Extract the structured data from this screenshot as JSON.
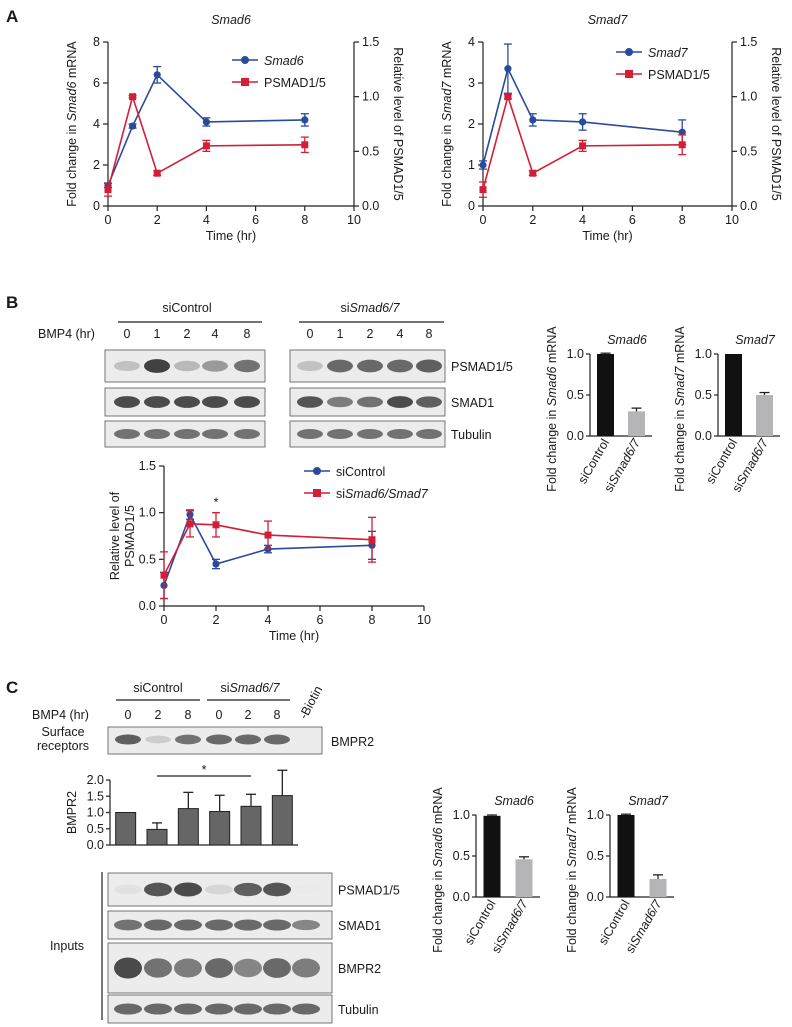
{
  "panels": {
    "a": "A",
    "b": "B",
    "c": "C"
  },
  "colors": {
    "blue": "#2a4a9c",
    "red": "#d21f37",
    "black": "#111111",
    "gray": "#b5b5b8",
    "bar_gray": "#666666"
  },
  "chart_data": [
    {
      "type": "line",
      "title": "Smad6",
      "xlabel": "Time (hr)",
      "ylabel": "Fold change in Smad6 mRNA",
      "y2label": "Relative level of PSMAD1/5",
      "xlim": [
        0,
        10
      ],
      "ylim": [
        0,
        8
      ],
      "y2lim": [
        0,
        1.5
      ],
      "xticks": [
        0,
        2,
        4,
        6,
        8,
        10
      ],
      "yticks": [
        0,
        2,
        4,
        6,
        8
      ],
      "y2ticks": [
        "0.0",
        "0.5",
        "1.0",
        "1.5"
      ],
      "series": [
        {
          "name": "Smad6",
          "axis": "left",
          "color": "blue",
          "x": [
            0,
            1,
            2,
            4,
            8
          ],
          "y": [
            1.0,
            3.9,
            6.4,
            4.1,
            4.2
          ],
          "err": [
            0.1,
            0.1,
            0.4,
            0.2,
            0.3
          ]
        },
        {
          "name": "PSMAD1/5",
          "axis": "right",
          "color": "red",
          "x": [
            0,
            1,
            2,
            4,
            8
          ],
          "y": [
            0.15,
            1.0,
            0.3,
            0.55,
            0.56
          ],
          "err": [
            0.06,
            0.01,
            0.02,
            0.05,
            0.07
          ]
        }
      ]
    },
    {
      "type": "line",
      "title": "Smad7",
      "xlabel": "Time (hr)",
      "ylabel": "Fold change in Smad7 mRNA",
      "y2label": "Relative level of PSMAD1/5",
      "xlim": [
        0,
        10
      ],
      "ylim": [
        0,
        4
      ],
      "y2lim": [
        0,
        1.5
      ],
      "xticks": [
        0,
        2,
        4,
        6,
        8,
        10
      ],
      "yticks": [
        0,
        1,
        2,
        3,
        4
      ],
      "y2ticks": [
        "0.0",
        "0.5",
        "1.0",
        "1.5"
      ],
      "series": [
        {
          "name": "Smad7",
          "axis": "left",
          "color": "blue",
          "x": [
            0,
            1,
            2,
            4,
            8
          ],
          "y": [
            1.0,
            3.35,
            2.1,
            2.05,
            1.8
          ],
          "err": [
            0.1,
            0.6,
            0.15,
            0.2,
            0.3
          ]
        },
        {
          "name": "PSMAD1/5",
          "axis": "right",
          "color": "red",
          "x": [
            0,
            1,
            2,
            4,
            8
          ],
          "y": [
            0.15,
            1.0,
            0.3,
            0.55,
            0.56
          ],
          "err": [
            0.07,
            0.02,
            0.02,
            0.05,
            0.09
          ]
        }
      ]
    },
    {
      "type": "line",
      "title": "",
      "xlabel": "Time (hr)",
      "ylabel": "Relative level of PSMAD1/5",
      "xlim": [
        0,
        10
      ],
      "ylim": [
        0,
        1.5
      ],
      "xticks": [
        0,
        2,
        4,
        6,
        8,
        10
      ],
      "yticks": [
        "0.0",
        "0.5",
        "1.0",
        "1.5"
      ],
      "annotations": [
        "*"
      ],
      "series": [
        {
          "name": "siControl",
          "color": "blue",
          "x": [
            0,
            1,
            2,
            4,
            8
          ],
          "y": [
            0.22,
            0.98,
            0.45,
            0.61,
            0.65
          ],
          "err": [
            0.14,
            0.05,
            0.05,
            0.04,
            0.15
          ]
        },
        {
          "name": "siSmad6/Smad7",
          "color": "red",
          "x": [
            0,
            1,
            2,
            4,
            8
          ],
          "y": [
            0.33,
            0.88,
            0.87,
            0.76,
            0.71
          ],
          "err": [
            0.25,
            0.14,
            0.13,
            0.15,
            0.24
          ]
        }
      ]
    },
    {
      "type": "bar",
      "title": "Smad6",
      "ylabel": "Fold change in Smad6 mRNA",
      "ylim": [
        0,
        1.0
      ],
      "yticks": [
        "0.0",
        "0.5",
        "1.0"
      ],
      "categories": [
        "siControl",
        "siSmad6/7"
      ],
      "values": [
        1.0,
        0.3
      ],
      "err": [
        0.01,
        0.04
      ]
    },
    {
      "type": "bar",
      "title": "Smad7",
      "ylabel": "Fold change in Smad7 mRNA",
      "ylim": [
        0,
        1.0
      ],
      "yticks": [
        "0.0",
        "0.5",
        "1.0"
      ],
      "categories": [
        "siControl",
        "siSmad6/7"
      ],
      "values": [
        1.0,
        0.5
      ],
      "err": [
        0.0,
        0.03
      ]
    },
    {
      "type": "bar",
      "title": "",
      "ylabel": "BMPR2",
      "ylim": [
        0,
        2.0
      ],
      "yticks": [
        "0.0",
        "0.5",
        "1.0",
        "1.5",
        "2.0"
      ],
      "categories": [
        "0",
        "2",
        "8",
        "0",
        "2",
        "8"
      ],
      "values": [
        1.0,
        0.48,
        1.12,
        1.03,
        1.19,
        1.52
      ],
      "err": [
        0.0,
        0.2,
        0.5,
        0.5,
        0.37,
        0.78
      ],
      "annotations": [
        "*"
      ]
    },
    {
      "type": "bar",
      "title": "Smad6",
      "ylabel": "Fold change in Smad6 mRNA",
      "ylim": [
        0,
        1.0
      ],
      "yticks": [
        "0.0",
        "0.5",
        "1.0"
      ],
      "categories": [
        "siControl",
        "siSmad6/7"
      ],
      "values": [
        0.99,
        0.46
      ],
      "err": [
        0.01,
        0.03
      ]
    },
    {
      "type": "bar",
      "title": "Smad7",
      "ylabel": "Fold change in Smad7 mRNA",
      "ylim": [
        0,
        1.0
      ],
      "yticks": [
        "0.0",
        "0.5",
        "1.0"
      ],
      "categories": [
        "siControl",
        "siSmad6/7"
      ],
      "values": [
        1.0,
        0.22
      ],
      "err": [
        0.01,
        0.05
      ]
    }
  ],
  "blot_b": {
    "group1": "siControl",
    "group2_prefix": "si",
    "group2_italic": "Smad6/7",
    "row_label": "BMP4 (hr)",
    "times": [
      "0",
      "1",
      "2",
      "4",
      "8",
      "0",
      "1",
      "2",
      "4",
      "8"
    ],
    "bands": [
      "PSMAD1/5",
      "SMAD1",
      "Tubulin"
    ],
    "intensity": [
      [
        0.3,
        0.95,
        0.35,
        0.5,
        0.7,
        0.3,
        0.75,
        0.75,
        0.75,
        0.8
      ],
      [
        0.9,
        0.9,
        0.9,
        0.9,
        0.9,
        0.85,
        0.65,
        0.7,
        0.9,
        0.8
      ],
      [
        0.7,
        0.7,
        0.7,
        0.7,
        0.7,
        0.7,
        0.7,
        0.7,
        0.7,
        0.7
      ]
    ]
  },
  "blot_c": {
    "group1": "siControl",
    "group2_prefix": "si",
    "group2_italic": "Smad6/7",
    "row_label": "BMP4 (hr)",
    "times": [
      "0",
      "2",
      "8",
      "0",
      "2",
      "8"
    ],
    "biotin_label": "-Biotin",
    "surface_label_1": "Surface",
    "surface_label_2": "receptors",
    "surface_band": "BMPR2",
    "inputs_label": "Inputs",
    "bands": [
      "PSMAD1/5",
      "SMAD1",
      "BMPR2",
      "Tubulin"
    ],
    "surface_intensity": [
      0.8,
      0.25,
      0.7,
      0.75,
      0.75,
      0.75,
      0.0
    ],
    "intensity": [
      [
        0.15,
        0.85,
        0.9,
        0.2,
        0.8,
        0.85,
        0.1
      ],
      [
        0.7,
        0.75,
        0.75,
        0.75,
        0.75,
        0.75,
        0.6
      ],
      [
        0.9,
        0.7,
        0.65,
        0.75,
        0.6,
        0.75,
        0.65
      ],
      [
        0.75,
        0.75,
        0.75,
        0.75,
        0.75,
        0.75,
        0.75
      ]
    ]
  }
}
